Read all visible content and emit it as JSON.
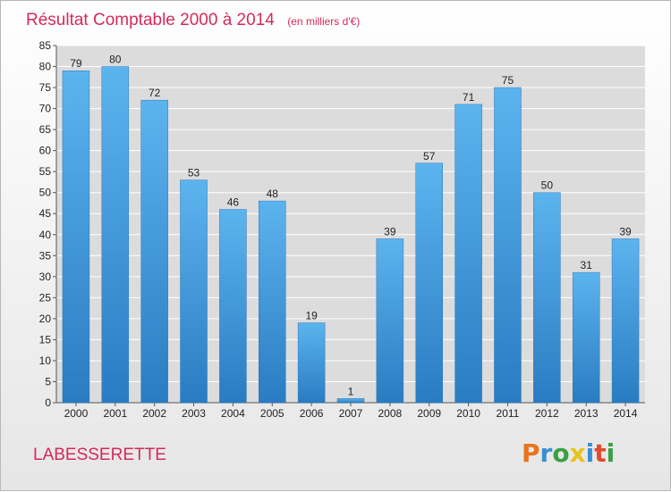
{
  "chart_data": {
    "type": "bar",
    "title": "Résultat Comptable 2000 à 2014",
    "subtitle": "(en milliers d'€)",
    "categories": [
      "2000",
      "2001",
      "2002",
      "2003",
      "2004",
      "2005",
      "2006",
      "2007",
      "2008",
      "2009",
      "2010",
      "2011",
      "2012",
      "2013",
      "2014"
    ],
    "values": [
      79,
      80,
      72,
      53,
      46,
      48,
      19,
      1,
      39,
      57,
      71,
      75,
      50,
      31,
      39
    ],
    "ylim": [
      0,
      85
    ],
    "yticks": [
      0,
      5,
      10,
      15,
      20,
      25,
      30,
      35,
      40,
      45,
      50,
      55,
      60,
      65,
      70,
      75,
      80,
      85
    ],
    "grid": true,
    "bar_color": "#4da3e0"
  },
  "commune": "LABESSERETTE",
  "logo": {
    "text": "Proxiti",
    "letters": [
      "P",
      "r",
      "o",
      "x",
      "i",
      "t",
      "i"
    ],
    "colors": [
      "#e8741e",
      "#3a8fd0",
      "#3aa042",
      "#e8c21e",
      "#3a8fd0",
      "#e24a2a",
      "#3aa042"
    ]
  }
}
